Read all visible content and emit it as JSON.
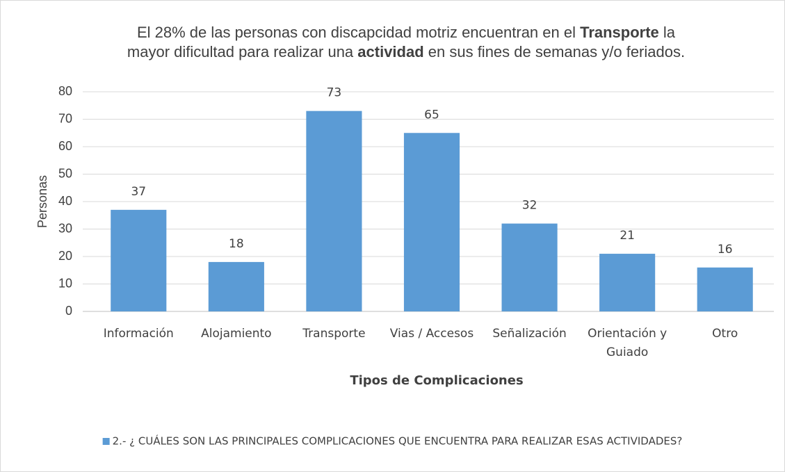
{
  "chart_data": {
    "type": "bar",
    "title": [
      [
        {
          "text": "El 28% de las personas con discapcidad motriz encuentran en el ",
          "bold": false
        },
        {
          "text": "Transporte",
          "bold": true
        },
        {
          "text": " la",
          "bold": false
        }
      ],
      [
        {
          "text": "mayor dificultad para realizar una ",
          "bold": false
        },
        {
          "text": "actividad",
          "bold": true
        },
        {
          "text": " en sus fines de semanas y/o feriados.",
          "bold": false
        }
      ]
    ],
    "x_label": "Tipos de Complicaciones",
    "y_label": "Personas",
    "categories": [
      "Información",
      "Alojamiento",
      "Transporte",
      "Vias / Accesos",
      "Señalización",
      "Orientación y Guiado",
      "Otro"
    ],
    "series": [
      {
        "name": "2.- ¿ CUÁLES SON LAS PRINCIPALES COMPLICACIONES QUE ENCUENTRA PARA REALIZAR ESAS ACTIVIDADES?",
        "color": "#5b9bd5",
        "values": [
          37,
          18,
          73,
          65,
          32,
          21,
          16
        ]
      }
    ],
    "ylim": [
      0,
      80
    ],
    "yticks": [
      0,
      10,
      20,
      30,
      40,
      50,
      60,
      70,
      80
    ],
    "grid": true,
    "legend": "bottom"
  }
}
